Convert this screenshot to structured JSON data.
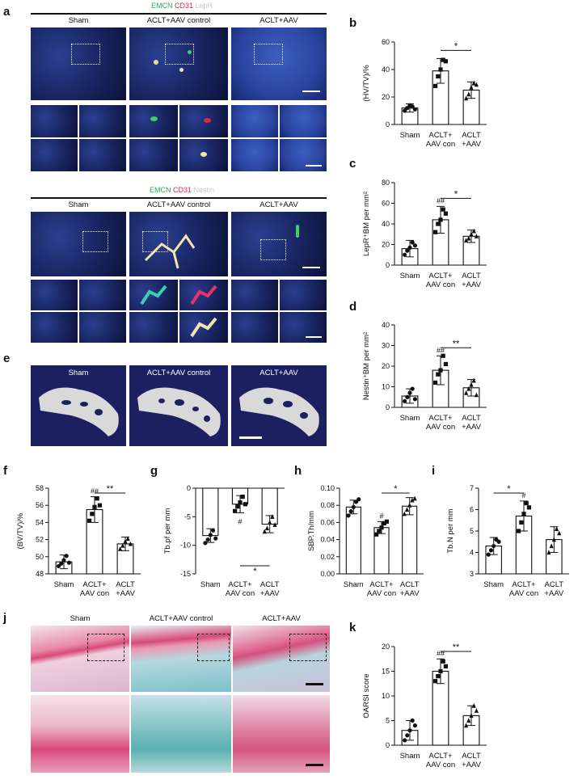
{
  "figure": {
    "panels": {
      "a": "a",
      "b": "b",
      "c": "c",
      "d": "d",
      "e": "e",
      "f": "f",
      "g": "g",
      "h": "h",
      "i": "i",
      "j": "j",
      "k": "k"
    },
    "stain_a1": {
      "emcn": "EMCN",
      "cd31": "CD31",
      "third": "LepR"
    },
    "stain_a2": {
      "emcn": "EMCN",
      "cd31": "CD31",
      "third": "Nestin"
    },
    "groups_micro": [
      "Sham",
      "ACLT+AAV control",
      "ACLT+AAV"
    ],
    "colors": {
      "emcn": "#22b04a",
      "cd31": "#e2263a",
      "third": "#cfcfcf",
      "bar_fill": "#ffffff",
      "stroke": "#111111"
    }
  },
  "chart_data": [
    {
      "panel": "b",
      "type": "bar",
      "categories": [
        "Sham",
        "ACLT+\nAAV con",
        "ACLT\n+AAV"
      ],
      "values": [
        12,
        39,
        25
      ],
      "errors": [
        3,
        9,
        6
      ],
      "points": [
        [
          10,
          12,
          14,
          13,
          11
        ],
        [
          28,
          35,
          40,
          47,
          46
        ],
        [
          19,
          22,
          27,
          30,
          29
        ]
      ],
      "ylabel": "(HV/TV)/%",
      "ylim": [
        0,
        60
      ],
      "yticks": [
        0,
        20,
        40,
        60
      ],
      "annotations": [
        {
          "text": "*",
          "between": [
            1,
            2
          ]
        }
      ],
      "sig_above": [
        "",
        "",
        ""
      ]
    },
    {
      "panel": "c",
      "type": "bar",
      "categories": [
        "Sham",
        "ACLT+\nAAV con",
        "ACLT\n+AAV"
      ],
      "values": [
        16,
        44,
        28
      ],
      "errors": [
        8,
        13,
        6
      ],
      "points": [
        [
          10,
          14,
          17,
          22,
          19
        ],
        [
          32,
          40,
          44,
          54,
          50
        ],
        [
          24,
          26,
          30,
          33,
          28
        ]
      ],
      "ylabel": "LepR⁺BM per mm²",
      "ylim": [
        0,
        80
      ],
      "yticks": [
        0,
        20,
        40,
        60,
        80
      ],
      "annotations": [
        {
          "text": "*",
          "between": [
            1,
            2
          ]
        }
      ],
      "sig_above": [
        "",
        "##",
        ""
      ]
    },
    {
      "panel": "d",
      "type": "bar",
      "categories": [
        "Sham",
        "ACLT+\nAAV con",
        "ACLT\n+AAV"
      ],
      "values": [
        5.5,
        18,
        9.5
      ],
      "errors": [
        3.5,
        7,
        4
      ],
      "points": [
        [
          3,
          5,
          7,
          9,
          4
        ],
        [
          12,
          16,
          18,
          25,
          21
        ],
        [
          7,
          9,
          11,
          13,
          6
        ]
      ],
      "ylabel": "Nestin⁺BM per mm²",
      "ylim": [
        0,
        40
      ],
      "yticks": [
        0,
        10,
        20,
        30,
        40
      ],
      "annotations": [
        {
          "text": "**",
          "between": [
            1,
            2
          ]
        }
      ],
      "sig_above": [
        "",
        "##",
        ""
      ]
    },
    {
      "panel": "f",
      "type": "bar",
      "categories": [
        "Sham",
        "ACLT+\nAAV con",
        "ACLT\n+AAV"
      ],
      "values": [
        49.4,
        55.5,
        51.5
      ],
      "errors": [
        0.8,
        1.5,
        0.8
      ],
      "points": [
        [
          48.9,
          49.2,
          49.6,
          50.1,
          49.3
        ],
        [
          54.2,
          55.0,
          55.8,
          56.8,
          56.0
        ],
        [
          50.9,
          51.3,
          51.8,
          52.1,
          51.5
        ]
      ],
      "ylabel": "(BV/TV)/%",
      "ylim": [
        48,
        58
      ],
      "yticks": [
        48,
        50,
        52,
        54,
        56,
        58
      ],
      "annotations": [
        {
          "text": "**",
          "between": [
            1,
            2
          ]
        }
      ],
      "sig_above": [
        "",
        "##",
        ""
      ]
    },
    {
      "panel": "g",
      "type": "bar",
      "categories": [
        "Sham",
        "ACLT+\nAAV con",
        "ACLT\n+AAV"
      ],
      "values": [
        -8.3,
        -2.8,
        -6.3
      ],
      "errors": [
        1.2,
        1.5,
        1.5
      ],
      "points": [
        [
          -9.6,
          -9,
          -8.2,
          -7.4,
          -8.8
        ],
        [
          -4,
          -3.2,
          -2.5,
          -1.5,
          -2.8
        ],
        [
          -7.6,
          -7,
          -6,
          -5,
          -6.4
        ]
      ],
      "ylabel": "Tb.pf per mm",
      "ylim": [
        -15,
        0
      ],
      "yticks": [
        -15,
        -10,
        -5,
        0
      ],
      "annotations": [
        {
          "text": "*",
          "between": [
            1,
            2
          ],
          "position": "below"
        }
      ],
      "sig_above": [
        "",
        "#",
        ""
      ]
    },
    {
      "panel": "h",
      "type": "bar",
      "categories": [
        "Sham",
        "ACLT+\nAAV con",
        "ACLT\n+AAV"
      ],
      "values": [
        0.078,
        0.054,
        0.079
      ],
      "errors": [
        0.008,
        0.007,
        0.01
      ],
      "points": [
        [
          0.068,
          0.073,
          0.078,
          0.084,
          0.087
        ],
        [
          0.046,
          0.05,
          0.054,
          0.059,
          0.061
        ],
        [
          0.07,
          0.075,
          0.08,
          0.086,
          0.088
        ]
      ],
      "ylabel": "SBP.Th/mm",
      "ylim": [
        0,
        0.1
      ],
      "yticks": [
        0.0,
        0.02,
        0.04,
        0.06,
        0.08,
        0.1
      ],
      "annotations": [
        {
          "text": "*",
          "between": [
            1,
            2
          ]
        }
      ],
      "sig_above": [
        "",
        "#",
        ""
      ]
    },
    {
      "panel": "i",
      "type": "bar",
      "categories": [
        "Sham",
        "ACLT+\nAAV con",
        "ACLT\n+AAV"
      ],
      "values": [
        4.3,
        5.7,
        4.6
      ],
      "errors": [
        0.4,
        0.7,
        0.6
      ],
      "points": [
        [
          3.9,
          4.1,
          4.3,
          4.6,
          4.5
        ],
        [
          5.0,
          5.4,
          5.8,
          6.3,
          6.1
        ],
        [
          4.0,
          4.3,
          4.6,
          5.1,
          4.9
        ]
      ],
      "ylabel": "Tb.N per mm",
      "ylim": [
        3,
        7
      ],
      "yticks": [
        3,
        4,
        5,
        6,
        7
      ],
      "annotations": [
        {
          "text": "*",
          "between": [
            0,
            1
          ]
        }
      ],
      "sig_above": [
        "",
        "#",
        ""
      ]
    },
    {
      "panel": "k",
      "type": "bar",
      "categories": [
        "Sham",
        "ACLT+\nAAV con",
        "ACLT\n+AAV"
      ],
      "values": [
        3,
        15,
        6
      ],
      "errors": [
        2,
        2.5,
        2
      ],
      "points": [
        [
          1,
          2,
          3,
          5,
          4
        ],
        [
          13,
          14,
          15,
          17,
          16
        ],
        [
          4,
          5,
          6,
          8,
          7
        ]
      ],
      "ylabel": "OARSI score",
      "ylim": [
        0,
        20
      ],
      "yticks": [
        0,
        5,
        10,
        15,
        20
      ],
      "annotations": [
        {
          "text": "**",
          "between": [
            1,
            2
          ]
        }
      ],
      "sig_above": [
        "",
        "##",
        ""
      ]
    }
  ]
}
